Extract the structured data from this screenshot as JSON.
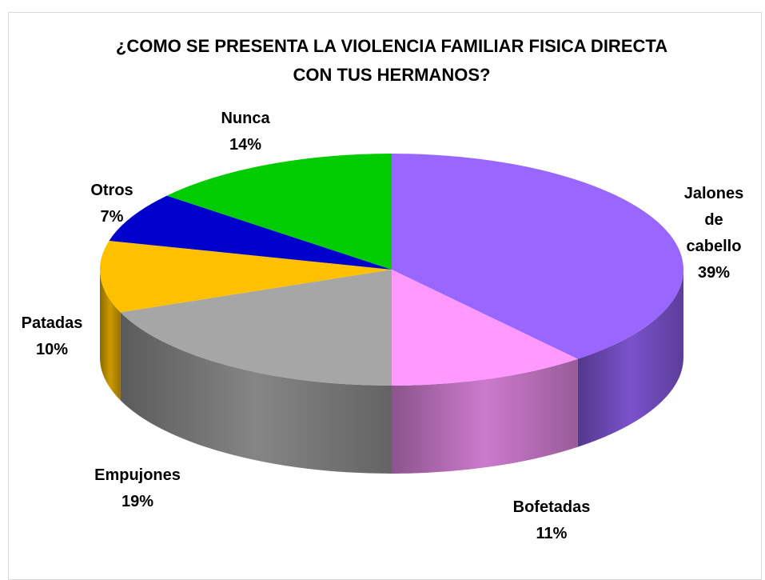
{
  "chart_data": {
    "type": "pie",
    "title": "¿COMO SE PRESENTA LA VIOLENCIA FAMILIAR FISICA DIRECTA CON TUS HERMANOS?",
    "categories": [
      "Jalones de cabello",
      "Bofetadas",
      "Empujones",
      "Patadas",
      "Otros",
      "Nunca"
    ],
    "values": [
      39,
      11,
      19,
      10,
      7,
      14
    ],
    "value_labels": [
      "39%",
      "11%",
      "19%",
      "10%",
      "7%",
      "14%"
    ],
    "colors": [
      "#9966ff",
      "#ff99ff",
      "#a6a6a6",
      "#ffc000",
      "#0000cc",
      "#00cc00"
    ]
  }
}
